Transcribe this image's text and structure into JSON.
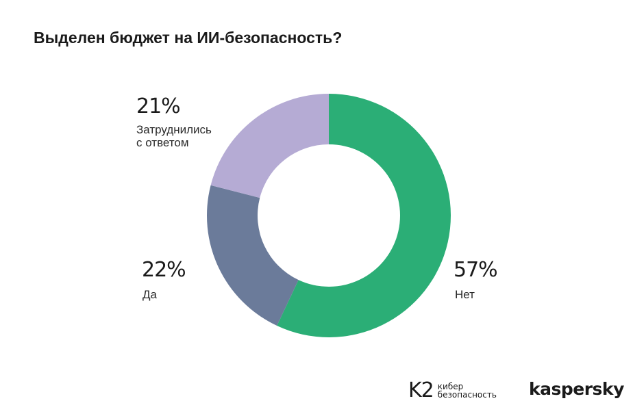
{
  "chart_data": {
    "type": "pie",
    "title": "Выделен бюджет на ИИ-безопасность?",
    "categories": [
      "Нет",
      "Да",
      "Затруднились\nс ответом"
    ],
    "values": [
      57,
      22,
      21
    ],
    "value_labels": [
      "57%",
      "22%",
      "21%"
    ],
    "colors": [
      "#2bae76",
      "#6b7b9a",
      "#b5abd4"
    ],
    "donut": true,
    "legend": "none"
  },
  "branding": {
    "k2_mark": "K2",
    "k2_text": "кибер\nбезопасность",
    "kaspersky": "kaspersky"
  }
}
